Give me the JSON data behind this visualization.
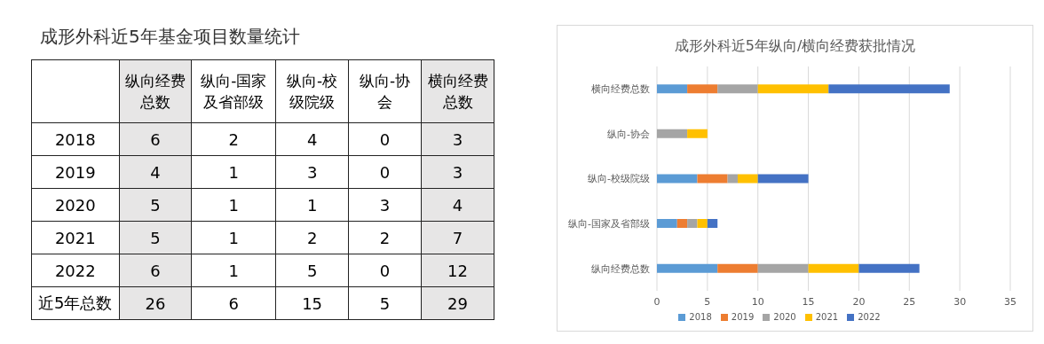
{
  "chart_data": [
    {
      "type": "heatmap",
      "title": "成形外科近5年基金项目数量统计",
      "categories": [
        "纵向经费总数",
        "纵向-国家及省部级",
        "纵向-校级院级",
        "纵向-协会",
        "横向经费总数"
      ],
      "colors": [
        "#e7e6e6",
        "#ffffff",
        "#ffffff",
        "#ffffff",
        "#e7e6e6"
      ],
      "y_categories": [
        "2018",
        "2019",
        "2020",
        "2021",
        "2022",
        "近5年总数"
      ],
      "data_labels": true,
      "cells": [
        [
          6,
          2,
          4,
          0,
          3
        ],
        [
          4,
          1,
          3,
          0,
          3
        ],
        [
          5,
          1,
          1,
          3,
          4
        ],
        [
          5,
          1,
          2,
          2,
          7
        ],
        [
          6,
          1,
          5,
          0,
          12
        ],
        [
          26,
          6,
          15,
          5,
          29
        ]
      ]
    },
    {
      "type": "bar",
      "orientation": "horizontal",
      "stacked": true,
      "title": "成形外科近5年纵向/横向经费获批情况",
      "categories": [
        "横向经费总数",
        "纵向-协会",
        "纵向-校级院级",
        "纵向-国家及省部级",
        "纵向经费总数"
      ],
      "xlim": [
        0,
        35
      ],
      "xticks": [
        0,
        5,
        10,
        15,
        20,
        25,
        30,
        35
      ],
      "grid": "x",
      "legend": "bottom",
      "series": [
        {
          "name": "2018",
          "color": "#5b9bd5",
          "values": [
            3,
            0,
            4,
            2,
            6
          ]
        },
        {
          "name": "2019",
          "color": "#ed7d31",
          "values": [
            3,
            0,
            3,
            1,
            4
          ]
        },
        {
          "name": "2020",
          "color": "#a5a5a5",
          "values": [
            4,
            3,
            1,
            1,
            5
          ]
        },
        {
          "name": "2021",
          "color": "#ffc000",
          "values": [
            7,
            2,
            2,
            1,
            5
          ]
        },
        {
          "name": "2022",
          "color": "#4472c4",
          "values": [
            12,
            0,
            5,
            1,
            6
          ]
        }
      ]
    }
  ]
}
